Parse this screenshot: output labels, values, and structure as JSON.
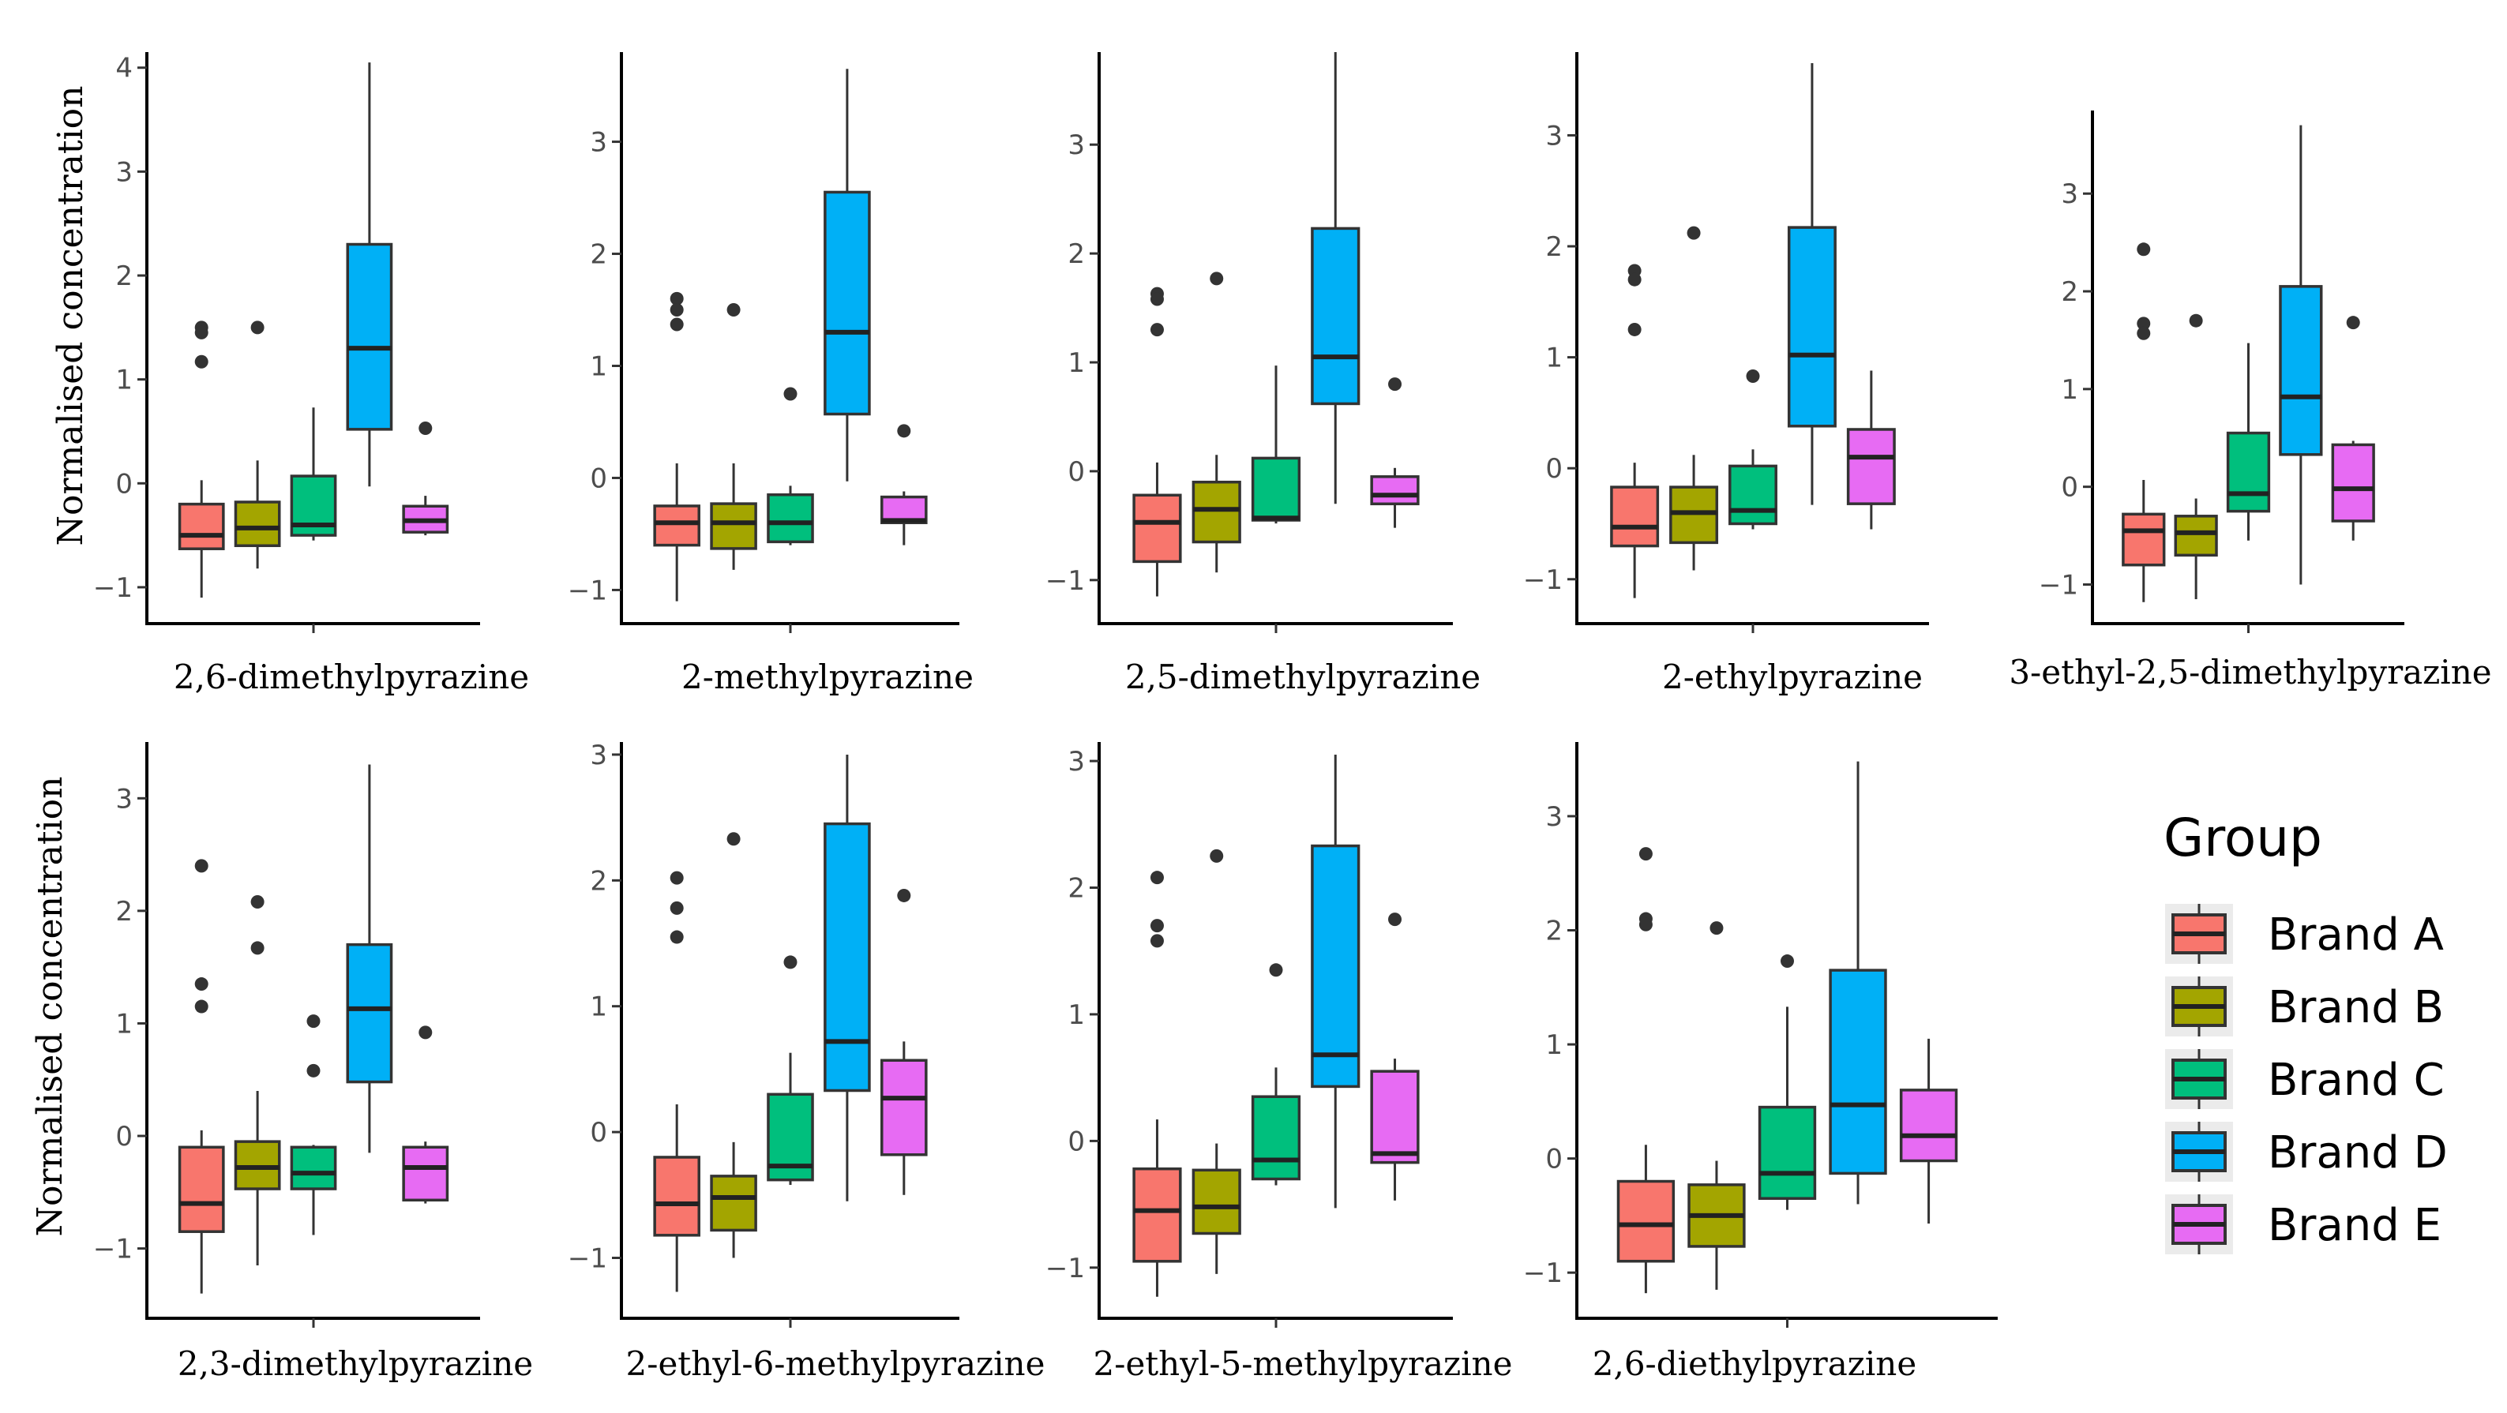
{
  "chart_data": {
    "type": "box",
    "y_axis_label": "Normalised concentration",
    "legend": {
      "title": "Group",
      "entries": [
        {
          "name": "Brand A",
          "color": "#f8766d"
        },
        {
          "name": "Brand B",
          "color": "#a3a500"
        },
        {
          "name": "Brand C",
          "color": "#00bf7d"
        },
        {
          "name": "Brand D",
          "color": "#00b0f6"
        },
        {
          "name": "Brand E",
          "color": "#e76bf3"
        }
      ]
    },
    "panels": [
      {
        "title": "2,6-dimethylpyrazine",
        "ylim": [
          -1.35,
          4.15
        ],
        "ticks": [
          -1,
          0,
          1,
          2,
          3,
          4
        ],
        "boxes": [
          {
            "min": -1.1,
            "q1": -0.63,
            "median": -0.5,
            "q3": -0.2,
            "max": 0.03,
            "outliers": [
              1.5,
              1.45,
              1.17
            ]
          },
          {
            "min": -0.82,
            "q1": -0.6,
            "median": -0.43,
            "q3": -0.18,
            "max": 0.22,
            "outliers": [
              1.5
            ]
          },
          {
            "min": -0.55,
            "q1": -0.5,
            "median": -0.4,
            "q3": 0.07,
            "max": 0.73,
            "outliers": []
          },
          {
            "min": -0.03,
            "q1": 0.52,
            "median": 1.3,
            "q3": 2.3,
            "max": 4.05,
            "outliers": []
          },
          {
            "min": -0.5,
            "q1": -0.47,
            "median": -0.36,
            "q3": -0.22,
            "max": -0.12,
            "outliers": [
              0.53
            ]
          }
        ]
      },
      {
        "title": "2-methylpyrazine",
        "ylim": [
          -1.3,
          3.8
        ],
        "ticks": [
          -1,
          0,
          1,
          2,
          3
        ],
        "boxes": [
          {
            "min": -1.1,
            "q1": -0.6,
            "median": -0.4,
            "q3": -0.25,
            "max": 0.13,
            "outliers": [
              1.6,
              1.5,
              1.37
            ]
          },
          {
            "min": -0.82,
            "q1": -0.63,
            "median": -0.4,
            "q3": -0.23,
            "max": 0.13,
            "outliers": [
              1.5
            ]
          },
          {
            "min": -0.6,
            "q1": -0.57,
            "median": -0.4,
            "q3": -0.15,
            "max": -0.07,
            "outliers": [
              0.75
            ]
          },
          {
            "min": -0.03,
            "q1": 0.57,
            "median": 1.3,
            "q3": 2.55,
            "max": 3.65,
            "outliers": []
          },
          {
            "min": -0.6,
            "q1": -0.4,
            "median": -0.38,
            "q3": -0.17,
            "max": -0.12,
            "outliers": [
              0.42
            ]
          }
        ]
      },
      {
        "title": "2,5-dimethylpyrazine",
        "ylim": [
          -1.4,
          3.85
        ],
        "ticks": [
          -1,
          0,
          1,
          2,
          3
        ],
        "boxes": [
          {
            "min": -1.15,
            "q1": -0.83,
            "median": -0.47,
            "q3": -0.22,
            "max": 0.08,
            "outliers": [
              1.63,
              1.58,
              1.3
            ]
          },
          {
            "min": -0.93,
            "q1": -0.65,
            "median": -0.35,
            "q3": -0.1,
            "max": 0.15,
            "outliers": [
              1.77
            ]
          },
          {
            "min": -0.48,
            "q1": -0.45,
            "median": -0.43,
            "q3": 0.12,
            "max": 0.97,
            "outliers": []
          },
          {
            "min": -0.3,
            "q1": 0.62,
            "median": 1.05,
            "q3": 2.23,
            "max": 3.85,
            "outliers": []
          },
          {
            "min": -0.52,
            "q1": -0.3,
            "median": -0.22,
            "q3": -0.05,
            "max": 0.03,
            "outliers": [
              0.8
            ]
          }
        ]
      },
      {
        "title": "2-ethylpyrazine",
        "ylim": [
          -1.4,
          3.75
        ],
        "ticks": [
          -1,
          0,
          1,
          2,
          3
        ],
        "boxes": [
          {
            "min": -1.17,
            "q1": -0.7,
            "median": -0.53,
            "q3": -0.17,
            "max": 0.05,
            "outliers": [
              1.78,
              1.7,
              1.25
            ]
          },
          {
            "min": -0.92,
            "q1": -0.67,
            "median": -0.4,
            "q3": -0.17,
            "max": 0.12,
            "outliers": [
              2.12
            ]
          },
          {
            "min": -0.55,
            "q1": -0.5,
            "median": -0.38,
            "q3": 0.02,
            "max": 0.17,
            "outliers": [
              0.83
            ]
          },
          {
            "min": -0.33,
            "q1": 0.38,
            "median": 1.02,
            "q3": 2.17,
            "max": 3.65,
            "outliers": []
          },
          {
            "min": -0.55,
            "q1": -0.32,
            "median": 0.1,
            "q3": 0.35,
            "max": 0.88,
            "outliers": []
          }
        ]
      },
      {
        "title": "3-ethyl-2,5-dimethylpyrazine",
        "ylim": [
          -1.4,
          3.85
        ],
        "ticks": [
          -1,
          0,
          1,
          2,
          3
        ],
        "boxes": [
          {
            "min": -1.18,
            "q1": -0.8,
            "median": -0.45,
            "q3": -0.28,
            "max": 0.07,
            "outliers": [
              2.43,
              1.67,
              1.57
            ]
          },
          {
            "min": -1.15,
            "q1": -0.7,
            "median": -0.47,
            "q3": -0.3,
            "max": -0.12,
            "outliers": [
              1.7
            ]
          },
          {
            "min": -0.55,
            "q1": -0.25,
            "median": -0.07,
            "q3": 0.55,
            "max": 1.47,
            "outliers": []
          },
          {
            "min": -1.0,
            "q1": 0.33,
            "median": 0.92,
            "q3": 2.05,
            "max": 3.7,
            "outliers": []
          },
          {
            "min": -0.55,
            "q1": -0.35,
            "median": -0.02,
            "q3": 0.43,
            "max": 0.47,
            "outliers": [
              1.68
            ]
          }
        ]
      },
      {
        "title": "2,3-dimethylpyrazine",
        "ylim": [
          -1.62,
          3.5
        ],
        "ticks": [
          -1,
          0,
          1,
          2,
          3
        ],
        "boxes": [
          {
            "min": -1.4,
            "q1": -0.85,
            "median": -0.6,
            "q3": -0.1,
            "max": 0.05,
            "outliers": [
              2.4,
              1.35,
              1.15
            ]
          },
          {
            "min": -1.15,
            "q1": -0.47,
            "median": -0.28,
            "q3": -0.05,
            "max": 0.4,
            "outliers": [
              2.08,
              1.67
            ]
          },
          {
            "min": -0.88,
            "q1": -0.47,
            "median": -0.33,
            "q3": -0.1,
            "max": -0.08,
            "outliers": [
              1.02,
              0.58
            ]
          },
          {
            "min": -0.15,
            "q1": 0.48,
            "median": 1.13,
            "q3": 1.7,
            "max": 3.3,
            "outliers": []
          },
          {
            "min": -0.6,
            "q1": -0.57,
            "median": -0.28,
            "q3": -0.1,
            "max": -0.05,
            "outliers": [
              0.92
            ]
          }
        ]
      },
      {
        "title": "2-ethyl-6-methylpyrazine",
        "ylim": [
          -1.48,
          3.1
        ],
        "ticks": [
          -1,
          0,
          1,
          2,
          3
        ],
        "boxes": [
          {
            "min": -1.27,
            "q1": -0.82,
            "median": -0.57,
            "q3": -0.2,
            "max": 0.22,
            "outliers": [
              2.02,
              1.78,
              1.55
            ]
          },
          {
            "min": -1.0,
            "q1": -0.78,
            "median": -0.52,
            "q3": -0.35,
            "max": -0.08,
            "outliers": [
              2.33
            ]
          },
          {
            "min": -0.42,
            "q1": -0.38,
            "median": -0.27,
            "q3": 0.3,
            "max": 0.63,
            "outliers": [
              1.35
            ]
          },
          {
            "min": -0.55,
            "q1": 0.33,
            "median": 0.72,
            "q3": 2.45,
            "max": 3.0,
            "outliers": []
          },
          {
            "min": -0.5,
            "q1": -0.18,
            "median": 0.27,
            "q3": 0.57,
            "max": 0.72,
            "outliers": [
              1.88
            ]
          }
        ]
      },
      {
        "title": "2-ethyl-5-methylpyrazine",
        "ylim": [
          -1.4,
          3.15
        ],
        "ticks": [
          -1,
          0,
          1,
          2,
          3
        ],
        "boxes": [
          {
            "min": -1.23,
            "q1": -0.95,
            "median": -0.55,
            "q3": -0.22,
            "max": 0.17,
            "outliers": [
              2.08,
              1.7,
              1.58
            ]
          },
          {
            "min": -1.05,
            "q1": -0.73,
            "median": -0.52,
            "q3": -0.23,
            "max": -0.02,
            "outliers": [
              2.25
            ]
          },
          {
            "min": -0.35,
            "q1": -0.3,
            "median": -0.15,
            "q3": 0.35,
            "max": 0.58,
            "outliers": [
              1.35
            ]
          },
          {
            "min": -0.53,
            "q1": 0.43,
            "median": 0.68,
            "q3": 2.33,
            "max": 3.05,
            "outliers": []
          },
          {
            "min": -0.47,
            "q1": -0.17,
            "median": -0.1,
            "q3": 0.55,
            "max": 0.65,
            "outliers": [
              1.75
            ]
          }
        ]
      },
      {
        "title": "2,6-diethylpyrazine",
        "ylim": [
          -1.4,
          3.65
        ],
        "ticks": [
          -1,
          0,
          1,
          2,
          3
        ],
        "boxes": [
          {
            "min": -1.18,
            "q1": -0.9,
            "median": -0.58,
            "q3": -0.2,
            "max": 0.12,
            "outliers": [
              2.67,
              2.1,
              2.05
            ]
          },
          {
            "min": -1.15,
            "q1": -0.77,
            "median": -0.5,
            "q3": -0.23,
            "max": -0.02,
            "outliers": [
              2.02
            ]
          },
          {
            "min": -0.45,
            "q1": -0.35,
            "median": -0.13,
            "q3": 0.45,
            "max": 1.33,
            "outliers": [
              1.73
            ]
          },
          {
            "min": -0.4,
            "q1": -0.13,
            "median": 0.47,
            "q3": 1.65,
            "max": 3.48,
            "outliers": []
          },
          {
            "min": -0.57,
            "q1": -0.02,
            "median": 0.2,
            "q3": 0.6,
            "max": 1.05,
            "outliers": []
          }
        ]
      }
    ]
  }
}
